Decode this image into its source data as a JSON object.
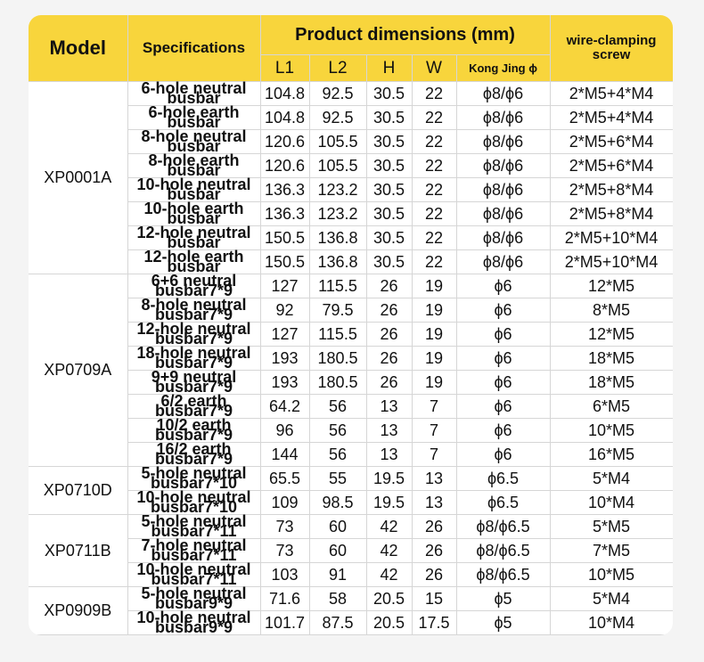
{
  "header": {
    "model": "Model",
    "specifications": "Specifications",
    "product_dimensions": "Product dimensions (mm)",
    "dims": [
      "L1",
      "L2",
      "H",
      "W",
      "Kong Jing ϕ"
    ],
    "screw": "wire-clamping screw"
  },
  "groups": [
    {
      "model": "XP0001A",
      "rows": [
        [
          "6-hole neutral busbar",
          "104.8",
          "92.5",
          "30.5",
          "22",
          "ϕ8/ϕ6",
          "2*M5+4*M4"
        ],
        [
          "6-hole earth busbar",
          "104.8",
          "92.5",
          "30.5",
          "22",
          "ϕ8/ϕ6",
          "2*M5+4*M4"
        ],
        [
          "8-hole neutral busbar",
          "120.6",
          "105.5",
          "30.5",
          "22",
          "ϕ8/ϕ6",
          "2*M5+6*M4"
        ],
        [
          "8-hole earth busbar",
          "120.6",
          "105.5",
          "30.5",
          "22",
          "ϕ8/ϕ6",
          "2*M5+6*M4"
        ],
        [
          "10-hole neutral busbar",
          "136.3",
          "123.2",
          "30.5",
          "22",
          "ϕ8/ϕ6",
          "2*M5+8*M4"
        ],
        [
          "10-hole earth busbar",
          "136.3",
          "123.2",
          "30.5",
          "22",
          "ϕ8/ϕ6",
          "2*M5+8*M4"
        ],
        [
          "12-hole neutral busbar",
          "150.5",
          "136.8",
          "30.5",
          "22",
          "ϕ8/ϕ6",
          "2*M5+10*M4"
        ],
        [
          "12-hole earth busbar",
          "150.5",
          "136.8",
          "30.5",
          "22",
          "ϕ8/ϕ6",
          "2*M5+10*M4"
        ]
      ]
    },
    {
      "model": "XP0709A",
      "rows": [
        [
          "6+6 neutral busbar7*9",
          "127",
          "115.5",
          "26",
          "19",
          "ϕ6",
          "12*M5"
        ],
        [
          "8-hole neutral busbar7*9",
          "92",
          "79.5",
          "26",
          "19",
          "ϕ6",
          "8*M5"
        ],
        [
          "12-hole neutral busbar7*9",
          "127",
          "115.5",
          "26",
          "19",
          "ϕ6",
          "12*M5"
        ],
        [
          "18-hole neutral busbar7*9",
          "193",
          "180.5",
          "26",
          "19",
          "ϕ6",
          "18*M5"
        ],
        [
          "9+9 neutral busbar7*9",
          "193",
          "180.5",
          "26",
          "19",
          "ϕ6",
          "18*M5"
        ],
        [
          "6/2 earth busbar7*9",
          "64.2",
          "56",
          "13",
          "7",
          "ϕ6",
          "6*M5"
        ],
        [
          "10/2 earth busbar7*9",
          "96",
          "56",
          "13",
          "7",
          "ϕ6",
          "10*M5"
        ],
        [
          "16/2 earth busbar7*9",
          "144",
          "56",
          "13",
          "7",
          "ϕ6",
          "16*M5"
        ]
      ]
    },
    {
      "model": "XP0710D",
      "rows": [
        [
          "5-hole neutral busbar7*10",
          "65.5",
          "55",
          "19.5",
          "13",
          "ϕ6.5",
          "5*M4"
        ],
        [
          "10-hole neutral busbar7*10",
          "109",
          "98.5",
          "19.5",
          "13",
          "ϕ6.5",
          "10*M4"
        ]
      ]
    },
    {
      "model": "XP0711B",
      "rows": [
        [
          "5-hole neutral busbar7*11",
          "73",
          "60",
          "42",
          "26",
          "ϕ8/ϕ6.5",
          "5*M5"
        ],
        [
          "7-hole neutral busbar7*11",
          "73",
          "60",
          "42",
          "26",
          "ϕ8/ϕ6.5",
          "7*M5"
        ],
        [
          "10-hole neutral busbar7*11",
          "103",
          "91",
          "42",
          "26",
          "ϕ8/ϕ6.5",
          "10*M5"
        ]
      ]
    },
    {
      "model": "XP0909B",
      "rows": [
        [
          "5-hole neutral busbar9*9",
          "71.6",
          "58",
          "20.5",
          "15",
          "ϕ5",
          "5*M4"
        ],
        [
          "10-hole neutral busbar9*9",
          "101.7",
          "87.5",
          "20.5",
          "17.5",
          "ϕ5",
          "10*M4"
        ]
      ]
    }
  ]
}
